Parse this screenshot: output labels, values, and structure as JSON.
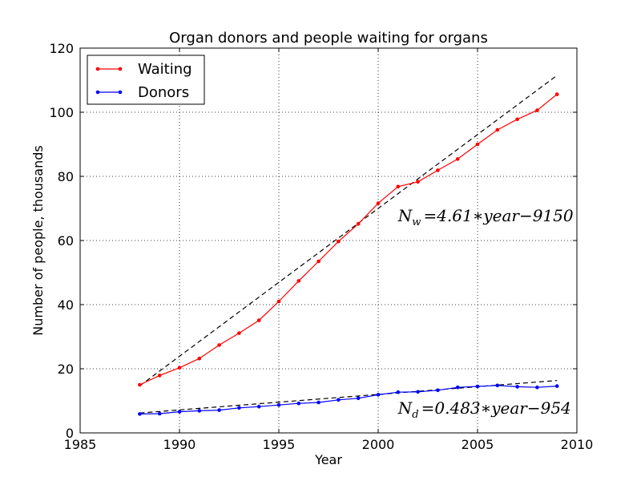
{
  "chart_data": {
    "type": "line",
    "title": "Organ donors and people waiting for organs",
    "xlabel": "Year",
    "ylabel": "Number of people, thousands",
    "xlim": [
      1985,
      2010
    ],
    "ylim": [
      0,
      120
    ],
    "xticks": [
      1985,
      1990,
      1995,
      2000,
      2005,
      2010
    ],
    "yticks": [
      0,
      20,
      40,
      60,
      80,
      100,
      120
    ],
    "grid": true,
    "legend_position": "top-left",
    "x": [
      1988,
      1989,
      1990,
      1991,
      1992,
      1993,
      1994,
      1995,
      1996,
      1997,
      1998,
      1999,
      2000,
      2001,
      2002,
      2003,
      2004,
      2005,
      2006,
      2007,
      2008,
      2009
    ],
    "series": [
      {
        "name": "Waiting",
        "color": "#ff0000",
        "values": [
          15.0,
          17.9,
          20.3,
          23.2,
          27.4,
          31.1,
          35.1,
          41.0,
          47.4,
          53.5,
          59.7,
          65.2,
          71.6,
          76.8,
          78.3,
          81.9,
          85.4,
          90.0,
          94.5,
          97.8,
          100.6,
          105.6
        ]
      },
      {
        "name": "Donors",
        "color": "#0000ff",
        "values": [
          5.9,
          6.0,
          6.6,
          6.9,
          7.1,
          7.8,
          8.2,
          8.7,
          9.2,
          9.5,
          10.3,
          10.8,
          11.9,
          12.7,
          12.8,
          13.3,
          14.2,
          14.5,
          14.8,
          14.4,
          14.2,
          14.6
        ]
      }
    ],
    "fits": [
      {
        "series": "Waiting",
        "slope": 4.61,
        "intercept": -9150,
        "x_range": [
          1988,
          2009
        ]
      },
      {
        "series": "Donors",
        "slope": 0.483,
        "intercept": -954,
        "x_range": [
          1988,
          2009
        ]
      }
    ],
    "annotations": [
      {
        "sym": "N",
        "sub": "w",
        "rest": "=4.61∗year−9150",
        "x": 2001,
        "y": 66
      },
      {
        "sym": "N",
        "sub": "d",
        "rest": "=0.483∗year−954",
        "x": 2001,
        "y": 6
      }
    ],
    "fit_color": "#000000"
  }
}
